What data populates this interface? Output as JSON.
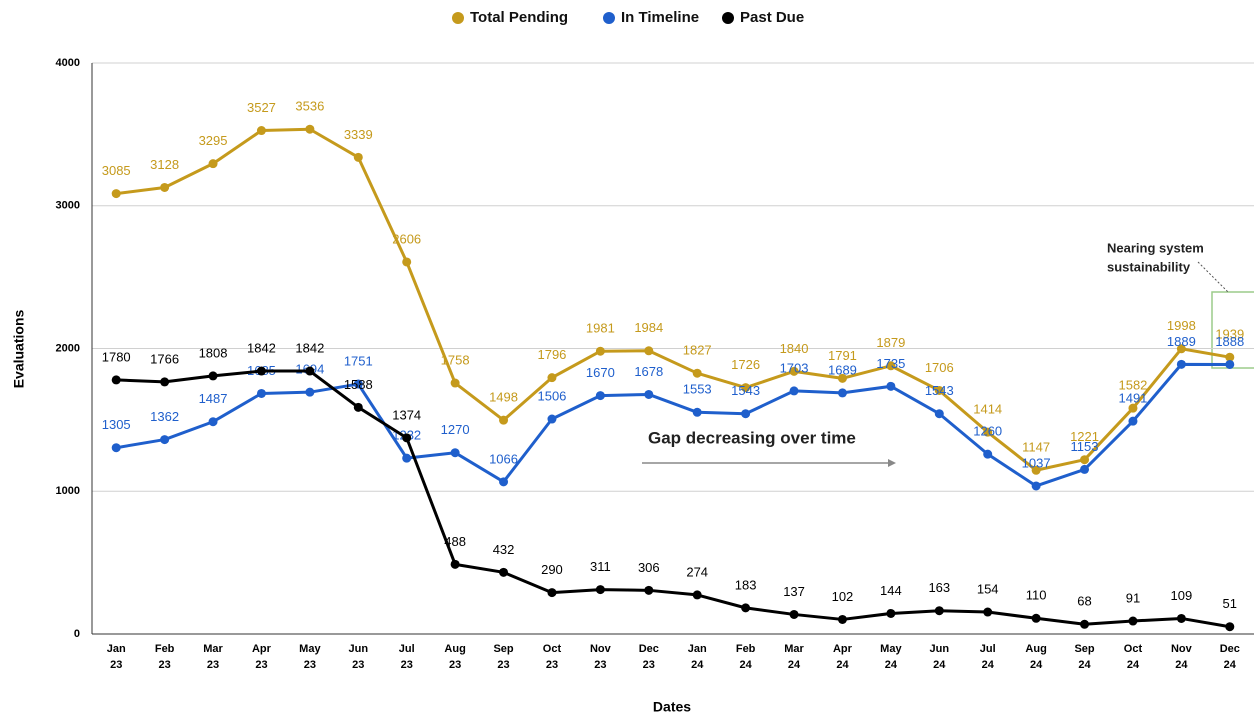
{
  "chart_data": {
    "type": "line",
    "x_label": "Dates",
    "y_label": "Evaluations",
    "categories": [
      "Jan 23",
      "Feb 23",
      "Mar 23",
      "Apr 23",
      "May 23",
      "Jun 23",
      "Jul 23",
      "Aug 23",
      "Sep 23",
      "Oct 23",
      "Nov 23",
      "Dec 23",
      "Jan 24",
      "Feb 24",
      "Mar 24",
      "Apr 24",
      "May 24",
      "Jun 24",
      "Jul 24",
      "Aug 24",
      "Sep 24",
      "Oct 24",
      "Nov 24",
      "Dec 24"
    ],
    "series": [
      {
        "name": "Total Pending",
        "color": "#c59a1c",
        "values": [
          3085,
          3128,
          3295,
          3527,
          3536,
          3339,
          2606,
          1758,
          1498,
          1796,
          1981,
          1984,
          1827,
          1726,
          1840,
          1791,
          1879,
          1706,
          1414,
          1147,
          1221,
          1582,
          1998,
          1939
        ]
      },
      {
        "name": "In Timeline",
        "color": "#1f5fcc",
        "values": [
          1305,
          1362,
          1487,
          1685,
          1694,
          1751,
          1232,
          1270,
          1066,
          1506,
          1670,
          1678,
          1553,
          1543,
          1703,
          1689,
          1735,
          1543,
          1260,
          1037,
          1153,
          1491,
          1889,
          1888
        ]
      },
      {
        "name": "Past Due",
        "color": "#000000",
        "values": [
          1780,
          1766,
          1808,
          1842,
          1842,
          1588,
          1374,
          488,
          432,
          290,
          311,
          306,
          274,
          183,
          137,
          102,
          144,
          163,
          154,
          110,
          68,
          91,
          109,
          51
        ]
      }
    ],
    "ylim": [
      0,
      4000
    ],
    "yticks": [
      0,
      1000,
      2000,
      3000,
      4000
    ],
    "grid": true,
    "annotations": [
      {
        "lines": [
          "Nearing system",
          "sustainability"
        ]
      },
      {
        "lines": [
          "Gap decreasing over time"
        ]
      }
    ]
  }
}
